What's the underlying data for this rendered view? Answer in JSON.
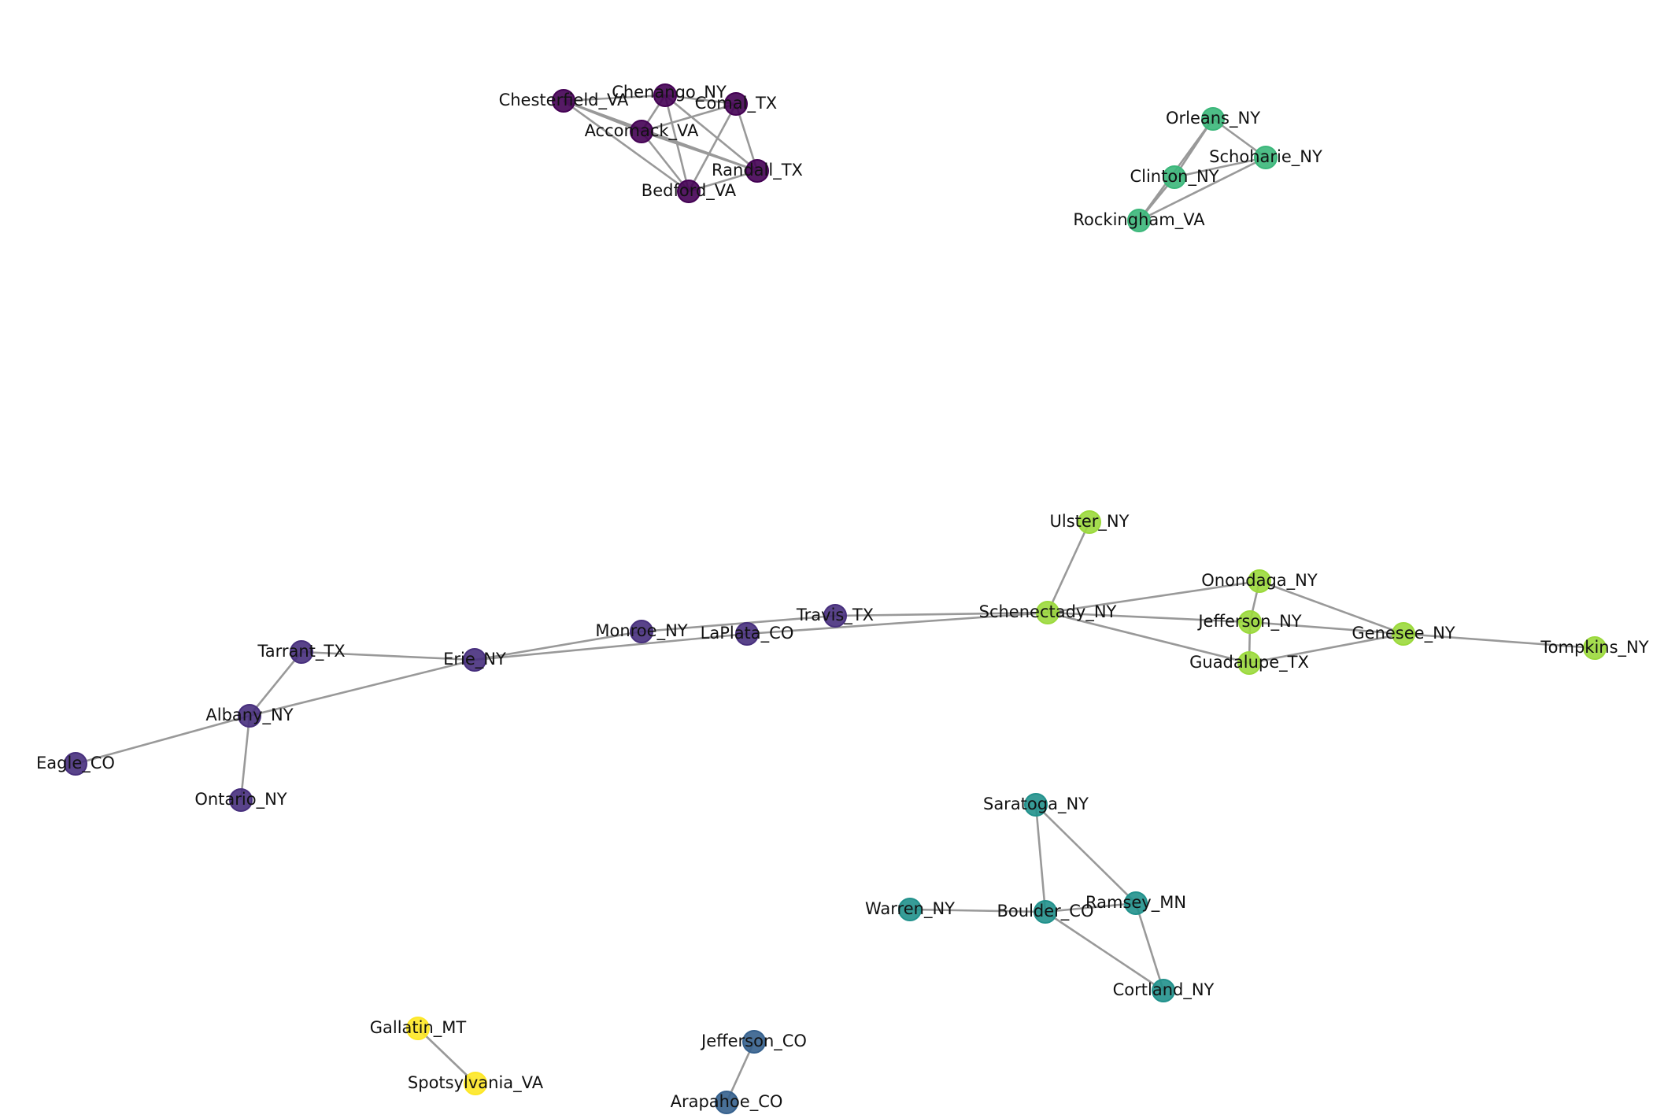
{
  "colors": {
    "edge": "#999999",
    "label": "#111111",
    "clusters": {
      "c0": "#440154",
      "c1": "#472f7d",
      "c2": "#35608d",
      "c3": "#21918c",
      "c4": "#3bb77a",
      "c5": "#9bd93c",
      "c6": "#fde725"
    }
  },
  "nodes": [
    {
      "id": "Chesterfield_VA",
      "cluster": "c0"
    },
    {
      "id": "Chenango_NY",
      "cluster": "c0"
    },
    {
      "id": "Comal_TX",
      "cluster": "c0"
    },
    {
      "id": "Accomack_VA",
      "cluster": "c0"
    },
    {
      "id": "Randall_TX",
      "cluster": "c0"
    },
    {
      "id": "Bedford_VA",
      "cluster": "c0"
    },
    {
      "id": "Orleans_NY",
      "cluster": "c4"
    },
    {
      "id": "Schoharie_NY",
      "cluster": "c4"
    },
    {
      "id": "Clinton_NY",
      "cluster": "c4"
    },
    {
      "id": "Rockingham_VA",
      "cluster": "c4"
    },
    {
      "id": "Ulster_NY",
      "cluster": "c5"
    },
    {
      "id": "Onondaga_NY",
      "cluster": "c5"
    },
    {
      "id": "Schenectady_NY",
      "cluster": "c5"
    },
    {
      "id": "Jefferson_NY",
      "cluster": "c5"
    },
    {
      "id": "Genesee_NY",
      "cluster": "c5"
    },
    {
      "id": "Tompkins_NY",
      "cluster": "c5"
    },
    {
      "id": "Guadalupe_TX",
      "cluster": "c5"
    },
    {
      "id": "Travis_TX",
      "cluster": "c1"
    },
    {
      "id": "Monroe_NY",
      "cluster": "c1"
    },
    {
      "id": "LaPlata_CO",
      "cluster": "c1"
    },
    {
      "id": "Tarrant_TX",
      "cluster": "c1"
    },
    {
      "id": "Erie_NY",
      "cluster": "c1"
    },
    {
      "id": "Albany_NY",
      "cluster": "c1"
    },
    {
      "id": "Eagle_CO",
      "cluster": "c1"
    },
    {
      "id": "Ontario_NY",
      "cluster": "c1"
    },
    {
      "id": "Saratoga_NY",
      "cluster": "c3"
    },
    {
      "id": "Warren_NY",
      "cluster": "c3"
    },
    {
      "id": "Boulder_CO",
      "cluster": "c3"
    },
    {
      "id": "Ramsey_MN",
      "cluster": "c3"
    },
    {
      "id": "Cortland_NY",
      "cluster": "c3"
    },
    {
      "id": "Gallatin_MT",
      "cluster": "c6"
    },
    {
      "id": "Spotsylvania_VA",
      "cluster": "c6"
    },
    {
      "id": "Jefferson_CO",
      "cluster": "c2"
    },
    {
      "id": "Arapahoe_CO",
      "cluster": "c2"
    }
  ],
  "edges": [
    [
      "Chesterfield_VA",
      "Chenango_NY"
    ],
    [
      "Chesterfield_VA",
      "Randall_TX"
    ],
    [
      "Chesterfield_VA",
      "Bedford_VA"
    ],
    [
      "Chesterfield_VA",
      "Accomack_VA"
    ],
    [
      "Chenango_NY",
      "Comal_TX"
    ],
    [
      "Chenango_NY",
      "Accomack_VA"
    ],
    [
      "Chenango_NY",
      "Bedford_VA"
    ],
    [
      "Chenango_NY",
      "Randall_TX"
    ],
    [
      "Comal_TX",
      "Accomack_VA"
    ],
    [
      "Comal_TX",
      "Randall_TX"
    ],
    [
      "Comal_TX",
      "Bedford_VA"
    ],
    [
      "Accomack_VA",
      "Randall_TX"
    ],
    [
      "Accomack_VA",
      "Bedford_VA"
    ],
    [
      "Randall_TX",
      "Bedford_VA"
    ],
    [
      "Orleans_NY",
      "Schoharie_NY"
    ],
    [
      "Orleans_NY",
      "Clinton_NY"
    ],
    [
      "Orleans_NY",
      "Rockingham_VA"
    ],
    [
      "Schoharie_NY",
      "Clinton_NY"
    ],
    [
      "Schoharie_NY",
      "Rockingham_VA"
    ],
    [
      "Clinton_NY",
      "Rockingham_VA"
    ],
    [
      "Ulster_NY",
      "Schenectady_NY"
    ],
    [
      "Schenectady_NY",
      "Onondaga_NY"
    ],
    [
      "Schenectady_NY",
      "Jefferson_NY"
    ],
    [
      "Schenectady_NY",
      "Guadalupe_TX"
    ],
    [
      "Schenectady_NY",
      "Travis_TX"
    ],
    [
      "Schenectady_NY",
      "LaPlata_CO"
    ],
    [
      "Onondaga_NY",
      "Jefferson_NY"
    ],
    [
      "Onondaga_NY",
      "Genesee_NY"
    ],
    [
      "Jefferson_NY",
      "Genesee_NY"
    ],
    [
      "Jefferson_NY",
      "Guadalupe_TX"
    ],
    [
      "Genesee_NY",
      "Guadalupe_TX"
    ],
    [
      "Genesee_NY",
      "Tompkins_NY"
    ],
    [
      "Travis_TX",
      "Monroe_NY"
    ],
    [
      "Monroe_NY",
      "Erie_NY"
    ],
    [
      "LaPlata_CO",
      "Erie_NY"
    ],
    [
      "Erie_NY",
      "Tarrant_TX"
    ],
    [
      "Erie_NY",
      "Albany_NY"
    ],
    [
      "Tarrant_TX",
      "Albany_NY"
    ],
    [
      "Albany_NY",
      "Eagle_CO"
    ],
    [
      "Albany_NY",
      "Ontario_NY"
    ],
    [
      "Saratoga_NY",
      "Boulder_CO"
    ],
    [
      "Saratoga_NY",
      "Ramsey_MN"
    ],
    [
      "Warren_NY",
      "Boulder_CO"
    ],
    [
      "Boulder_CO",
      "Ramsey_MN"
    ],
    [
      "Boulder_CO",
      "Cortland_NY"
    ],
    [
      "Ramsey_MN",
      "Cortland_NY"
    ],
    [
      "Gallatin_MT",
      "Spotsylvania_VA"
    ],
    [
      "Jefferson_CO",
      "Arapahoe_CO"
    ]
  ]
}
